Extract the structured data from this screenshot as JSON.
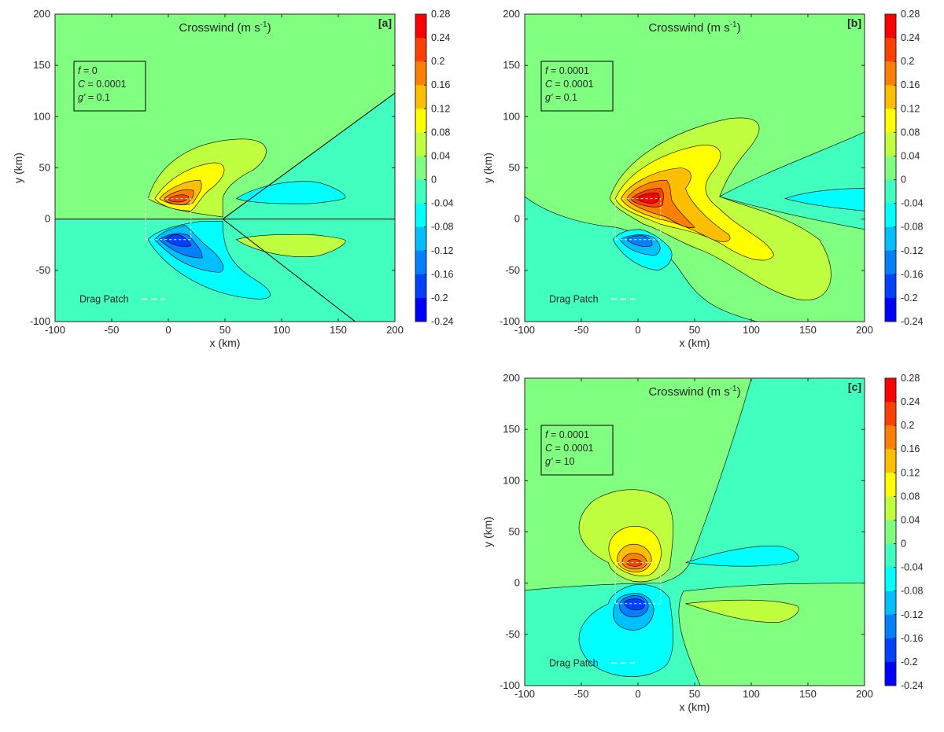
{
  "chart_data": [
    {
      "type": "contour",
      "panel_label": "[a]",
      "title": "Crosswind (m s-1)",
      "title_main": "Crosswind (m s",
      "title_sup": "-1",
      "title_end": ")",
      "xlabel": "x (km)",
      "ylabel": "y (km)",
      "xlim": [
        -100,
        200
      ],
      "ylim": [
        -100,
        200
      ],
      "xticks": [
        -100,
        -50,
        0,
        50,
        100,
        150,
        200
      ],
      "yticks": [
        -100,
        -50,
        0,
        50,
        100,
        150,
        200
      ],
      "params": [
        {
          "sym": "f",
          "value": " = 0"
        },
        {
          "sym": "C",
          "value": " = 0.0001"
        },
        {
          "sym": "g'",
          "value": " = 0.1"
        }
      ],
      "drag_patch_label": "Drag Patch",
      "drag_patch": {
        "x": [
          -20,
          20
        ],
        "y": [
          -20,
          20
        ]
      },
      "colorbar_levels": [
        0.28,
        0.24,
        0.2,
        0.16,
        0.12,
        0.08,
        0.04,
        0,
        -0.04,
        -0.08,
        -0.12,
        -0.16,
        -0.2,
        -0.24
      ],
      "features": [
        {
          "sign": "positive",
          "extreme_at": [
            13,
            20
          ],
          "max_value": 0.24
        },
        {
          "sign": "negative",
          "extreme_at": [
            13,
            -20
          ],
          "min_value": -0.16
        },
        {
          "sign": "negative",
          "extreme_at": [
            125,
            25
          ],
          "min_value": -0.04
        },
        {
          "sign": "positive",
          "extreme_at": [
            125,
            -25
          ],
          "max_value": 0.08
        }
      ]
    },
    {
      "type": "contour",
      "panel_label": "[b]",
      "title": "Crosswind (m s-1)",
      "title_main": "Crosswind (m s",
      "title_sup": "-1",
      "title_end": ")",
      "xlabel": "x (km)",
      "ylabel": "y (km)",
      "xlim": [
        -100,
        200
      ],
      "ylim": [
        -100,
        200
      ],
      "xticks": [
        -100,
        -50,
        0,
        50,
        100,
        150,
        200
      ],
      "yticks": [
        -100,
        -50,
        0,
        50,
        100,
        150,
        200
      ],
      "params": [
        {
          "sym": "f",
          "value": " = 0.0001"
        },
        {
          "sym": "C",
          "value": " = 0.0001"
        },
        {
          "sym": "g'",
          "value": " = 0.1"
        }
      ],
      "drag_patch_label": "Drag Patch",
      "drag_patch": {
        "x": [
          -20,
          20
        ],
        "y": [
          -20,
          20
        ]
      },
      "colorbar_levels": [
        0.28,
        0.24,
        0.2,
        0.16,
        0.12,
        0.08,
        0.04,
        0,
        -0.04,
        -0.08,
        -0.12,
        -0.16,
        -0.2,
        -0.24
      ],
      "features": [
        {
          "sign": "positive",
          "extreme_at": [
            15,
            20
          ],
          "max_value": 0.28
        },
        {
          "sign": "negative",
          "extreme_at": [
            5,
            -20
          ],
          "min_value": -0.12
        },
        {
          "sign": "negative",
          "extreme_at": [
            170,
            20
          ],
          "min_value": -0.04
        }
      ]
    },
    {
      "type": "contour",
      "panel_label": "[c]",
      "title": "Crosswind (m s-1)",
      "title_main": "Crosswind (m s",
      "title_sup": "-1",
      "title_end": ")",
      "xlabel": "x (km)",
      "ylabel": "y (km)",
      "xlim": [
        -100,
        200
      ],
      "ylim": [
        -100,
        200
      ],
      "xticks": [
        -100,
        -50,
        0,
        50,
        100,
        150,
        200
      ],
      "yticks": [
        -100,
        -50,
        0,
        50,
        100,
        150,
        200
      ],
      "params": [
        {
          "sym": "f",
          "value": " = 0.0001"
        },
        {
          "sym": "C",
          "value": " = 0.0001"
        },
        {
          "sym": "g'",
          "value": " = 10"
        }
      ],
      "drag_patch_label": "Drag Patch",
      "drag_patch": {
        "x": [
          -20,
          20
        ],
        "y": [
          -20,
          20
        ]
      },
      "colorbar_levels": [
        0.28,
        0.24,
        0.2,
        0.16,
        0.12,
        0.08,
        0.04,
        0,
        -0.04,
        -0.08,
        -0.12,
        -0.16,
        -0.2,
        -0.24
      ],
      "features": [
        {
          "sign": "positive",
          "extreme_at": [
            -5,
            20
          ],
          "max_value": 0.2
        },
        {
          "sign": "negative",
          "extreme_at": [
            -5,
            -20
          ],
          "min_value": -0.16
        },
        {
          "sign": "negative",
          "extreme_at": [
            95,
            20
          ],
          "min_value": -0.04
        },
        {
          "sign": "positive",
          "extreme_at": [
            100,
            -25
          ],
          "max_value": 0.08
        }
      ]
    }
  ],
  "colors": {
    "band_colors": [
      "#ff0000",
      "#ff4000",
      "#ff8000",
      "#ffbf00",
      "#ffff00",
      "#bfff40",
      "#80ff80",
      "#40ffbf",
      "#00ffff",
      "#00bfff",
      "#0080ff",
      "#0040ff",
      "#0000ff"
    ],
    "background": "#80ff80"
  }
}
